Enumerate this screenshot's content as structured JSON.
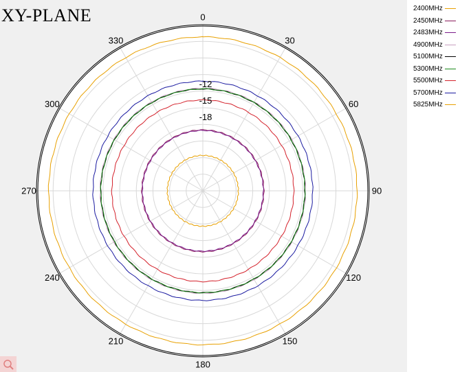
{
  "chart_data": {
    "type": "polar",
    "title": "XY-PLANE",
    "angle_ticks": [
      "0",
      "30",
      "60",
      "90",
      "120",
      "150",
      "180",
      "210",
      "240",
      "270",
      "300",
      "330"
    ],
    "angle_values": [
      0,
      30,
      60,
      90,
      120,
      150,
      180,
      210,
      240,
      270,
      300,
      330
    ],
    "angle_direction": "clockwise",
    "angle_zero": "top",
    "radial_range": [
      -30,
      0
    ],
    "radial_ticks": [
      {
        "label": "-12",
        "value": -12
      },
      {
        "label": "-15",
        "value": -15
      },
      {
        "label": "-18",
        "value": -18
      }
    ],
    "grid": true,
    "legend_position": "top-right",
    "series": [
      {
        "name": "2400MHz",
        "color": "#e8a000",
        "value": -2.2
      },
      {
        "name": "2450MHz",
        "color": "#8a1a5a",
        "value": -19.0
      },
      {
        "name": "2483MHz",
        "color": "#7a1a8a",
        "value": -19.1
      },
      {
        "name": "4900MHz",
        "color": "#c8a0c0",
        "value": -11.5
      },
      {
        "name": "5100MHz",
        "color": "#000000",
        "value": -11.6
      },
      {
        "name": "5300MHz",
        "color": "#1a8a1a",
        "value": -11.6
      },
      {
        "name": "5500MHz",
        "color": "#d4202a",
        "value": -13.6
      },
      {
        "name": "5700MHz",
        "color": "#1a1aa0",
        "value": -10.2
      },
      {
        "name": "5825MHz",
        "color": "#e8a000",
        "value": -23.6
      }
    ]
  }
}
